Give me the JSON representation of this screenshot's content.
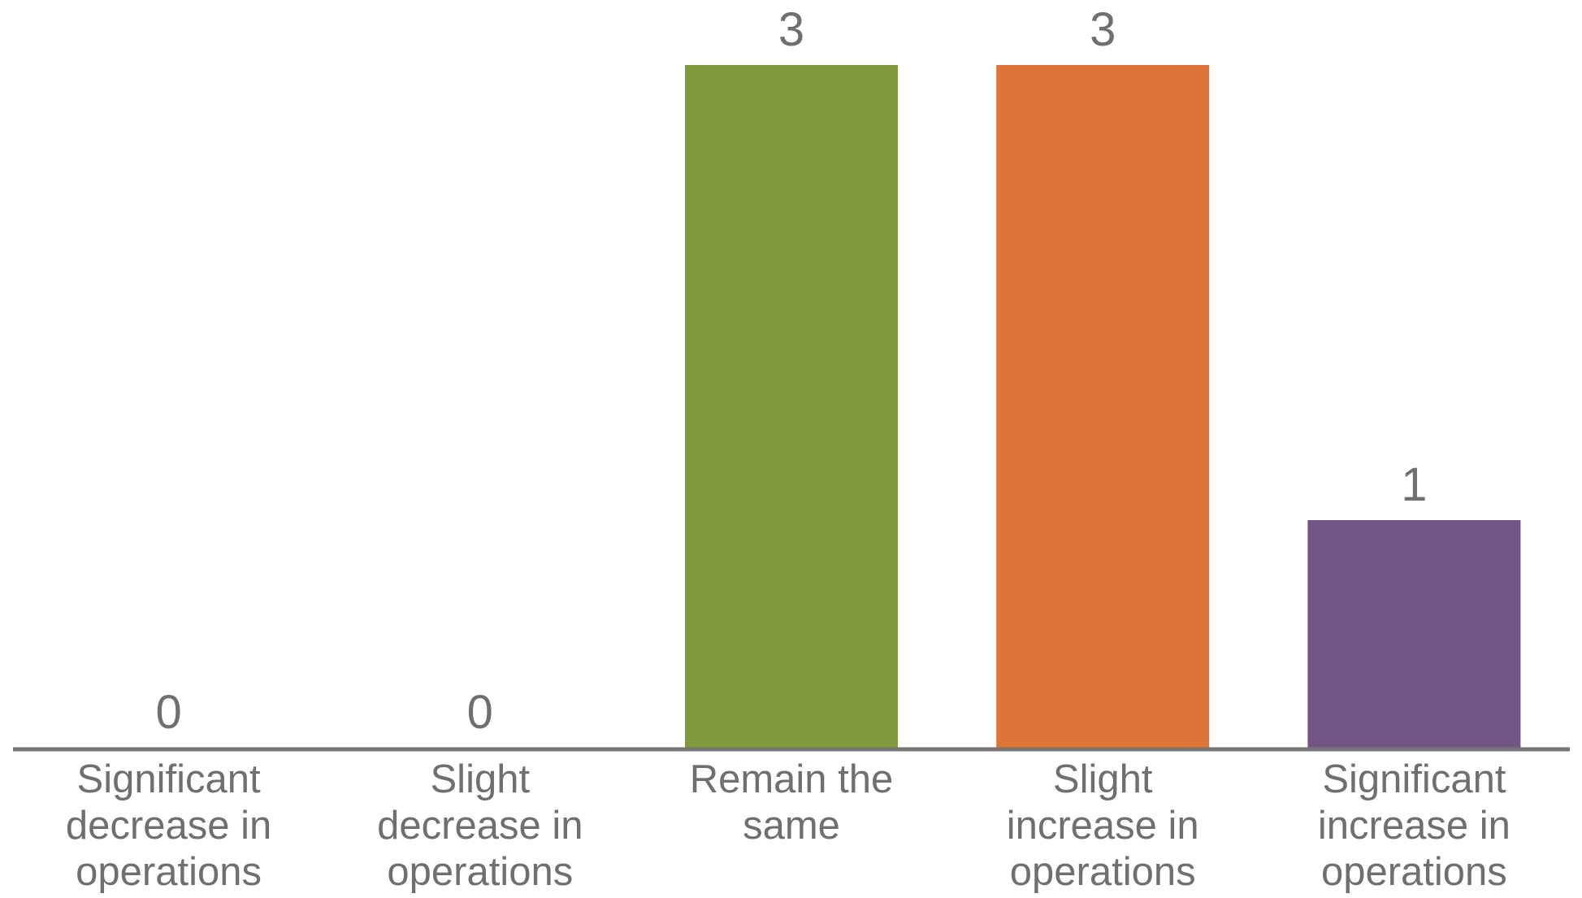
{
  "chart_data": {
    "type": "bar",
    "title": "",
    "xlabel": "",
    "ylabel": "",
    "categories": [
      [
        "Significant",
        "decrease in",
        "operations"
      ],
      [
        "Slight",
        "decrease in",
        "operations"
      ],
      [
        "Remain the",
        "same"
      ],
      [
        "Slight",
        "increase in",
        "operations"
      ],
      [
        "Significant",
        "increase in",
        "operations"
      ]
    ],
    "values": [
      0,
      0,
      3,
      3,
      1
    ],
    "colors": [
      "#7e9a3c",
      "#7e9a3c",
      "#7e9a3c",
      "#dd7539",
      "#735585"
    ],
    "ylim": [
      0,
      3
    ],
    "grid": false,
    "legend": "none",
    "data_labels": true
  },
  "style": {
    "axis_color": "#777777",
    "label_color": "#6f6f6f",
    "background": "#ffffff"
  }
}
